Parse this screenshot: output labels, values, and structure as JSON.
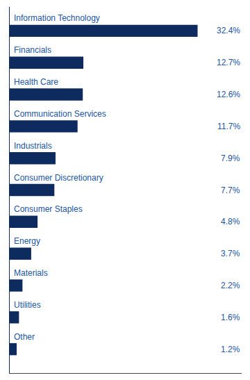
{
  "chart_data": {
    "type": "bar",
    "orientation": "horizontal",
    "categories": [
      "Information Technology",
      "Financials",
      "Health Care",
      "Communication Services",
      "Industrials",
      "Consumer Discretionary",
      "Consumer Staples",
      "Energy",
      "Materials",
      "Utilities",
      "Other"
    ],
    "values": [
      32.4,
      12.7,
      12.6,
      11.7,
      7.9,
      7.7,
      4.8,
      3.7,
      2.2,
      1.6,
      1.2
    ],
    "value_labels": [
      "32.4%",
      "12.7%",
      "12.6%",
      "11.7%",
      "7.9%",
      "7.7%",
      "4.8%",
      "3.7%",
      "2.2%",
      "1.6%",
      "1.2%"
    ],
    "data_labels": true,
    "color": "#0d2b5e",
    "xlim": [
      0,
      40
    ],
    "xticks": [],
    "grid": false,
    "tick_labels": false
  }
}
